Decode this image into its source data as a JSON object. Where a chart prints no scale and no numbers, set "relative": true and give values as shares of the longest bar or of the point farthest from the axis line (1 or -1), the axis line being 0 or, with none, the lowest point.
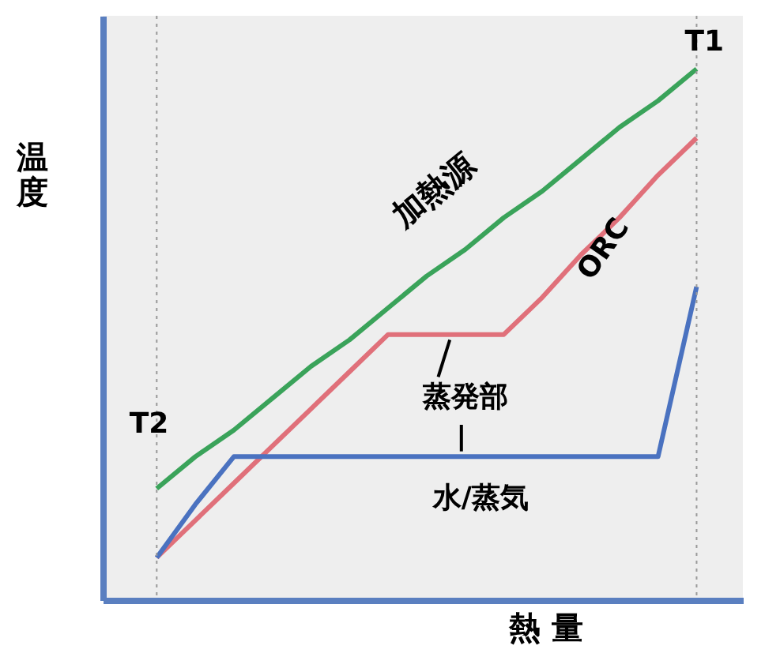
{
  "chart_data": {
    "type": "line",
    "relative": true,
    "xlabel": "熱 量",
    "ylabel": "温度",
    "categories": [
      null,
      null,
      null,
      null,
      null,
      null,
      null,
      null,
      null,
      null,
      null,
      null,
      null,
      null,
      null
    ],
    "series": [
      {
        "color": "#3aa35a",
        "values": [
          0.21,
          0.27,
          0.32,
          0.38,
          0.44,
          0.49,
          0.55,
          0.61,
          0.66,
          0.72,
          0.77,
          0.83,
          0.89,
          0.94,
          1.0
        ]
      },
      {
        "color": "#e0707a",
        "values": [
          0.08,
          0.15,
          0.22,
          0.29,
          0.36,
          0.43,
          0.5,
          0.5,
          0.5,
          0.5,
          0.57,
          0.65,
          0.72,
          0.8,
          0.87
        ]
      },
      {
        "color": "#4a72c0",
        "values": [
          0.08,
          0.18,
          0.27,
          0.27,
          0.27,
          0.27,
          0.27,
          0.27,
          0.27,
          0.27,
          0.27,
          0.27,
          0.27,
          0.27,
          0.59
        ]
      }
    ],
    "annotations": [
      "加熱源",
      "ORC",
      "蒸発部",
      "水/蒸気",
      "T1",
      "T2"
    ],
    "grid": false,
    "marker": "none",
    "line_style": "solid"
  }
}
